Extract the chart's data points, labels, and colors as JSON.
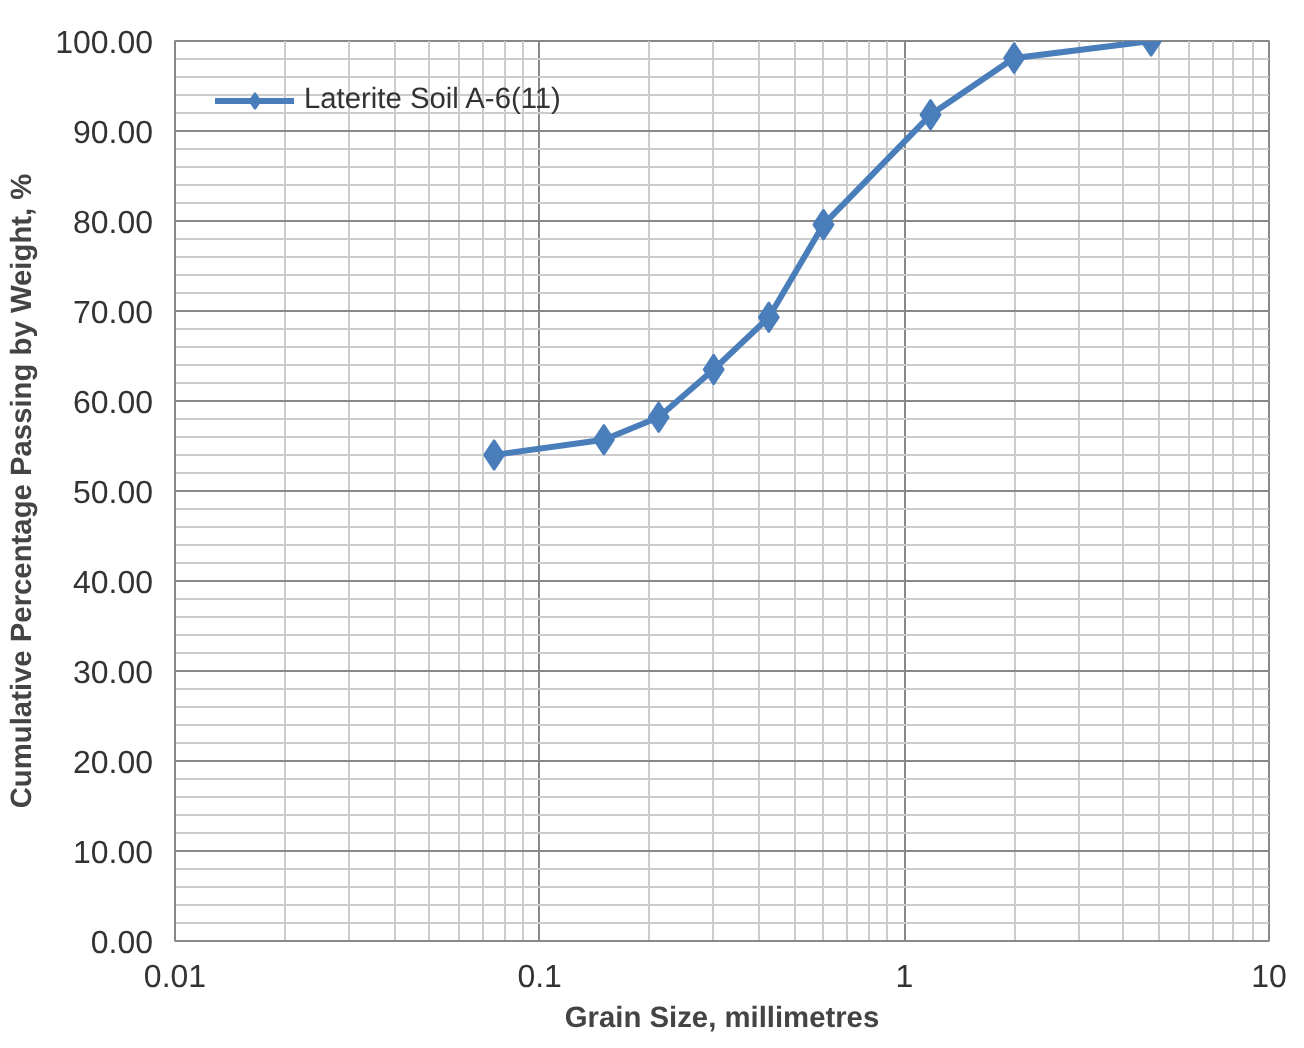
{
  "chart_data": {
    "type": "line",
    "xlabel": "Grain Size, millimetres",
    "ylabel": "Cumulative Percentage Passing by Weight, %",
    "x": [
      0.075,
      0.15,
      0.212,
      0.3,
      0.425,
      0.6,
      1.18,
      2,
      4.75
    ],
    "series": [
      {
        "name": "Laterite Soil A-6(11)",
        "color": "#4a7ebb",
        "values": [
          54.0,
          55.7,
          58.2,
          63.5,
          69.3,
          79.6,
          91.8,
          98.1,
          100.0
        ]
      }
    ],
    "log": "x",
    "xlim": [
      0.01,
      10
    ],
    "xticks": [
      0.01,
      0.1,
      1,
      10
    ],
    "ylim": [
      0,
      100
    ],
    "yticks": [
      {
        "value": 0,
        "label": "0.00"
      },
      {
        "value": 10,
        "label": "10.00"
      },
      {
        "value": 20,
        "label": "20.00"
      },
      {
        "value": 30,
        "label": "30.00"
      },
      {
        "value": 40,
        "label": "40.00"
      },
      {
        "value": 50,
        "label": "50.00"
      },
      {
        "value": 60,
        "label": "60.00"
      },
      {
        "value": 70,
        "label": "70.00"
      },
      {
        "value": 80,
        "label": "80.00"
      },
      {
        "value": 90,
        "label": "90.00"
      },
      {
        "value": 100,
        "label": "100.00"
      }
    ],
    "grid": true,
    "legend": "top left",
    "marker": "diamond",
    "line_style": "solid"
  }
}
